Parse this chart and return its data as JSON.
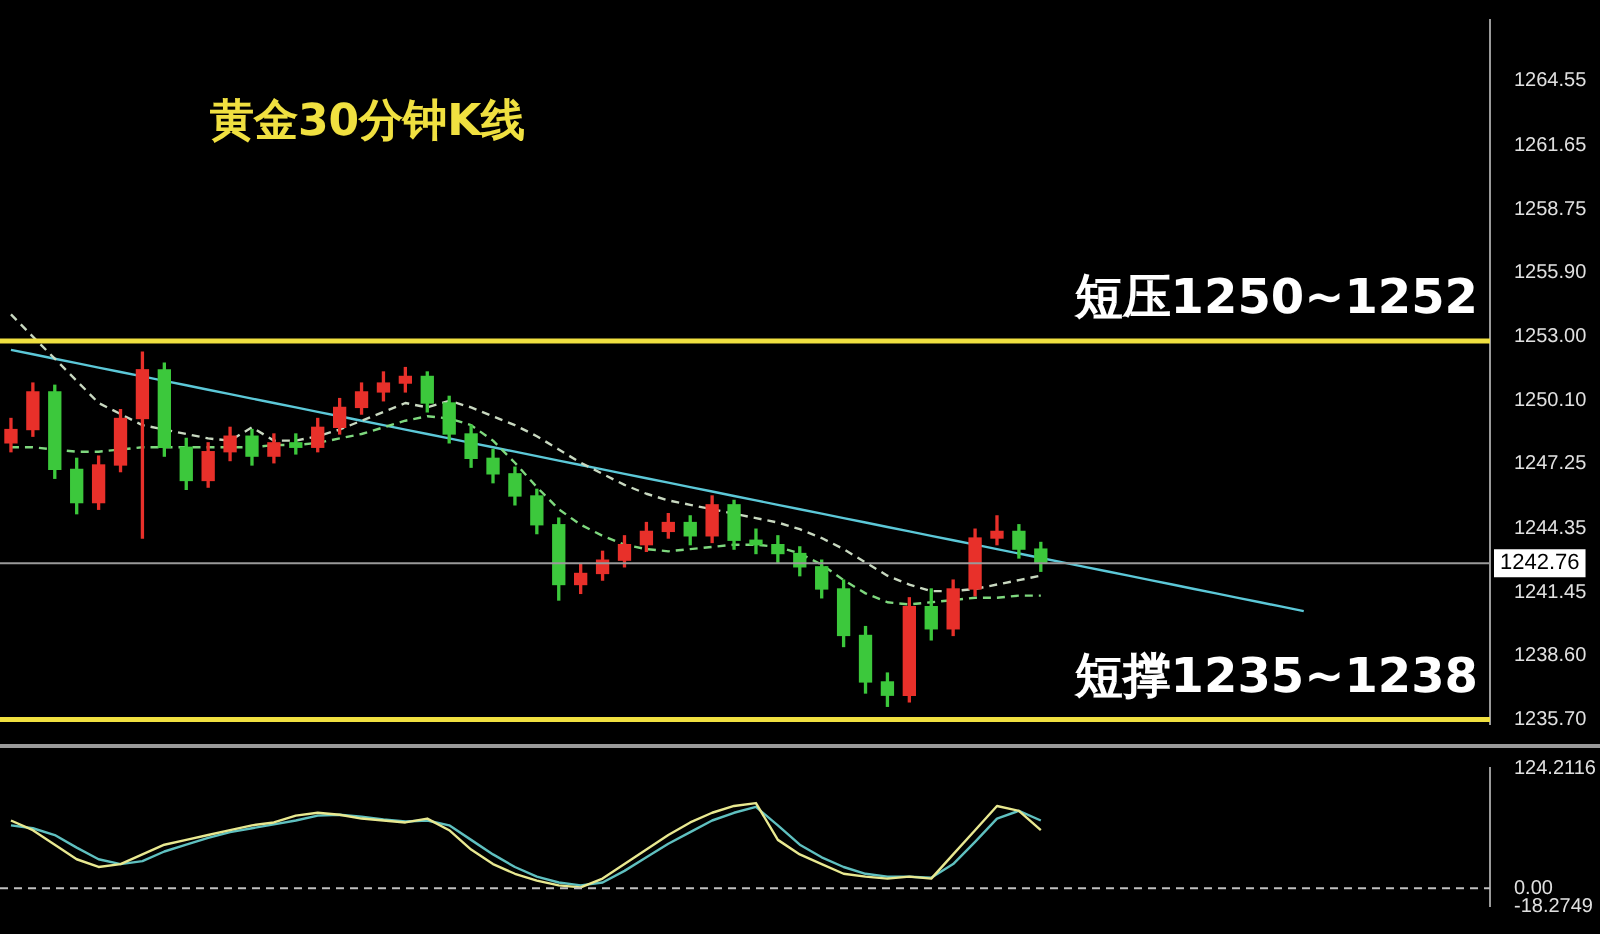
{
  "chart_data": [
    {
      "type": "candlestick",
      "title": "黄金30分钟K线",
      "legend": false,
      "marker": "none",
      "tick_labels": "y",
      "categories": [
        null,
        null,
        null,
        null,
        null,
        null,
        null,
        null,
        null,
        null,
        null,
        null,
        null,
        null,
        null,
        null,
        null,
        null,
        null,
        null,
        null,
        null,
        null,
        null,
        null,
        null,
        null,
        null,
        null,
        null,
        null,
        null,
        null,
        null,
        null,
        null,
        null,
        null,
        null,
        null,
        null,
        null,
        null,
        null,
        null,
        null,
        null,
        null,
        null,
        null,
        null,
        null,
        null,
        null,
        null,
        null,
        null,
        null,
        null,
        null,
        null,
        null,
        null,
        null,
        null,
        null,
        null,
        null
      ],
      "ohlc": [
        [
          1248.2,
          1249.3,
          1247.8,
          1248.8
        ],
        [
          1248.8,
          1250.9,
          1248.5,
          1250.5
        ],
        [
          1250.5,
          1250.8,
          1246.6,
          1247.0
        ],
        [
          1247.0,
          1247.5,
          1245.0,
          1245.5
        ],
        [
          1245.5,
          1247.6,
          1245.2,
          1247.2
        ],
        [
          1247.2,
          1249.7,
          1246.9,
          1249.3
        ],
        [
          1249.3,
          1252.3,
          1243.9,
          1251.5
        ],
        [
          1251.5,
          1251.8,
          1247.6,
          1248.0
        ],
        [
          1248.0,
          1248.4,
          1246.1,
          1246.5
        ],
        [
          1246.5,
          1248.2,
          1246.2,
          1247.8
        ],
        [
          1247.8,
          1248.9,
          1247.4,
          1248.5
        ],
        [
          1248.5,
          1248.8,
          1247.2,
          1247.6
        ],
        [
          1247.6,
          1248.6,
          1247.3,
          1248.2
        ],
        [
          1248.2,
          1248.6,
          1247.7,
          1248.0
        ],
        [
          1248.0,
          1249.3,
          1247.8,
          1248.9
        ],
        [
          1248.9,
          1250.2,
          1248.6,
          1249.8
        ],
        [
          1249.8,
          1250.9,
          1249.5,
          1250.5
        ],
        [
          1250.5,
          1251.4,
          1250.1,
          1250.9
        ],
        [
          1250.9,
          1251.6,
          1250.5,
          1251.2
        ],
        [
          1251.2,
          1251.4,
          1249.6,
          1250.0
        ],
        [
          1250.0,
          1250.3,
          1248.2,
          1248.6
        ],
        [
          1248.6,
          1249.0,
          1247.1,
          1247.5
        ],
        [
          1247.5,
          1247.9,
          1246.4,
          1246.8
        ],
        [
          1246.8,
          1247.1,
          1245.4,
          1245.8
        ],
        [
          1245.8,
          1246.1,
          1244.1,
          1244.5
        ],
        [
          1244.5,
          1244.8,
          1241.1,
          1241.8
        ],
        [
          1241.8,
          1242.7,
          1241.4,
          1242.3
        ],
        [
          1242.3,
          1243.3,
          1242.0,
          1242.9
        ],
        [
          1242.9,
          1244.0,
          1242.6,
          1243.6
        ],
        [
          1243.6,
          1244.6,
          1243.3,
          1244.2
        ],
        [
          1244.2,
          1245.0,
          1243.9,
          1244.6
        ],
        [
          1244.6,
          1244.9,
          1243.6,
          1244.0
        ],
        [
          1244.0,
          1245.8,
          1243.7,
          1245.4
        ],
        [
          1245.4,
          1245.6,
          1243.4,
          1243.8
        ],
        [
          1243.8,
          1244.3,
          1243.2,
          1243.6
        ],
        [
          1243.6,
          1244.0,
          1242.8,
          1243.2
        ],
        [
          1243.2,
          1243.5,
          1242.2,
          1242.6
        ],
        [
          1242.6,
          1242.9,
          1241.2,
          1241.6
        ],
        [
          1241.6,
          1242.0,
          1239.0,
          1239.5
        ],
        [
          1239.5,
          1239.9,
          1236.9,
          1237.4
        ],
        [
          1237.4,
          1237.8,
          1236.3,
          1236.8
        ],
        [
          1236.8,
          1241.2,
          1236.5,
          1240.8
        ],
        [
          1240.8,
          1241.6,
          1239.3,
          1239.8
        ],
        [
          1239.8,
          1242.0,
          1239.5,
          1241.6
        ],
        [
          1241.6,
          1244.3,
          1241.3,
          1243.9
        ],
        [
          1243.9,
          1244.9,
          1243.6,
          1244.2
        ],
        [
          1244.2,
          1244.5,
          1243.0,
          1243.4
        ],
        [
          1243.4,
          1243.7,
          1242.4,
          1242.76
        ],
        null,
        null,
        null,
        null,
        null,
        null,
        null,
        null,
        null,
        null,
        null,
        null,
        null,
        null,
        null,
        null,
        null,
        null,
        null,
        null
      ],
      "colors": [
        "#e8302a",
        "#e8302a",
        "#3cc83c",
        "#3cc83c",
        "#e8302a",
        "#e8302a",
        "#e8302a",
        "#3cc83c",
        "#3cc83c",
        "#e8302a",
        "#e8302a",
        "#3cc83c",
        "#e8302a",
        "#3cc83c",
        "#e8302a",
        "#e8302a",
        "#e8302a",
        "#e8302a",
        "#e8302a",
        "#3cc83c",
        "#3cc83c",
        "#3cc83c",
        "#3cc83c",
        "#3cc83c",
        "#3cc83c",
        "#3cc83c",
        "#e8302a",
        "#e8302a",
        "#e8302a",
        "#e8302a",
        "#e8302a",
        "#3cc83c",
        "#e8302a",
        "#3cc83c",
        "#3cc83c",
        "#3cc83c",
        "#3cc83c",
        "#3cc83c",
        "#3cc83c",
        "#3cc83c",
        "#3cc83c",
        "#e8302a",
        "#3cc83c",
        "#e8302a",
        "#e8302a",
        "#e8302a",
        "#3cc83c",
        "#3cc83c",
        null,
        null,
        null,
        null,
        null,
        null,
        null,
        null,
        null,
        null,
        null,
        null,
        null,
        null,
        null,
        null,
        null,
        null,
        null,
        null
      ],
      "series": [
        {
          "type": "line",
          "line_style": "dashed",
          "color": "#c8d8c0",
          "values": [
            1254,
            1253,
            1252,
            1251,
            1250,
            1249.5,
            1249,
            1248.8,
            1248.6,
            1248.4,
            1248.3,
            1248.9,
            1248.3,
            1248.3,
            1248.5,
            1248.8,
            1249.2,
            1249.6,
            1250,
            1249.8,
            1250.1,
            1249.8,
            1249.4,
            1249,
            1248.5,
            1247.9,
            1247.3,
            1246.8,
            1246.3,
            1245.9,
            1245.6,
            1245.4,
            1245.2,
            1245,
            1244.8,
            1244.6,
            1244.3,
            1243.9,
            1243.4,
            1242.8,
            1242.2,
            1241.8,
            1241.5,
            1241.5,
            1241.6,
            1241.8,
            1242,
            1242.2,
            null,
            null,
            null,
            null,
            null,
            null,
            null,
            null,
            null,
            null,
            null,
            null,
            null,
            null,
            null,
            null,
            null,
            null,
            null,
            null
          ]
        },
        {
          "type": "line",
          "line_style": "dashed",
          "color": "#7ed87e",
          "values": [
            1248,
            1248,
            1247.9,
            1247.8,
            1247.8,
            1247.9,
            1248,
            1248,
            1248,
            1248,
            1248,
            1248,
            1248.1,
            1248.1,
            1248.2,
            1248.4,
            1248.6,
            1248.9,
            1249.2,
            1249.4,
            1249.3,
            1249,
            1248.3,
            1247.3,
            1246.2,
            1245.2,
            1244.5,
            1244,
            1243.6,
            1243.4,
            1243.3,
            1243.4,
            1243.5,
            1243.6,
            1243.6,
            1243.5,
            1243.2,
            1242.7,
            1242,
            1241.4,
            1241,
            1240.9,
            1241,
            1241.1,
            1241.2,
            1241.2,
            1241.3,
            1241.3,
            null,
            null,
            null,
            null,
            null,
            null,
            null,
            null,
            null,
            null,
            null,
            null,
            null,
            null,
            null,
            null,
            null,
            null,
            null,
            null
          ]
        },
        {
          "type": "line",
          "line_style": "solid",
          "color": "#5cc8d8",
          "values": [
            1252.4,
            1252.2,
            1252.0,
            1251.8,
            1251.6,
            1251.4,
            1251.2,
            1251.0,
            1250.8,
            1250.6,
            1250.4,
            1250.2,
            1250.0,
            1249.8,
            1249.6,
            1249.4,
            1249.2,
            1249.0,
            1248.8,
            1248.6,
            1248.4,
            1248.2,
            1248.0,
            1247.8,
            1247.6,
            1247.4,
            1247.2,
            1247.0,
            1246.8,
            1246.6,
            1246.4,
            1246.2,
            1246.0,
            1245.8,
            1245.6,
            1245.4,
            1245.2,
            1245.0,
            1244.8,
            1244.6,
            1244.4,
            1244.2,
            1244.0,
            1243.8,
            1243.6,
            1243.4,
            1243.2,
            1243.0,
            1242.8,
            1242.6,
            1242.4,
            1242.2,
            1242.0,
            1241.8,
            1241.6,
            1241.4,
            1241.2,
            1241.0,
            1240.8,
            1240.6,
            null,
            null,
            null,
            null,
            null,
            null,
            null,
            null
          ]
        }
      ],
      "ylim": [
        1235.5,
        1267.3
      ],
      "yticks": [
        1264.55,
        1261.65,
        1258.75,
        {
          "value": 1255.9,
          "label": "1255.90"
        },
        {
          "value": 1253,
          "label": "1253.00"
        },
        {
          "value": 1250.1,
          "label": "1250.10"
        },
        1247.25,
        1244.35,
        1241.45,
        {
          "value": 1238.6,
          "label": "1238.60"
        },
        {
          "value": 1235.7,
          "label": "1235.70"
        }
      ],
      "ref_lines": [
        {
          "axis": "y",
          "value": 1252.8,
          "label": "短压1250~1252",
          "color": "#f0e040"
        },
        {
          "axis": "y",
          "value": 1235.7,
          "label": "短撑1235~1238",
          "color": "#f0e040"
        },
        {
          "axis": "y",
          "value": 1242.76,
          "label": "1242.76",
          "color": "#9a9a9a"
        }
      ]
    },
    {
      "type": "line",
      "legend": false,
      "marker": "none",
      "tick_labels": "y",
      "categories": [
        null,
        null,
        null,
        null,
        null,
        null,
        null,
        null,
        null,
        null,
        null,
        null,
        null,
        null,
        null,
        null,
        null,
        null,
        null,
        null,
        null,
        null,
        null,
        null,
        null,
        null,
        null,
        null,
        null,
        null,
        null,
        null,
        null,
        null,
        null,
        null,
        null,
        null,
        null,
        null,
        null,
        null,
        null,
        null,
        null,
        null,
        null,
        null,
        null,
        null,
        null,
        null,
        null,
        null,
        null,
        null,
        null,
        null,
        null,
        null,
        null,
        null,
        null,
        null,
        null,
        null,
        null,
        null
      ],
      "series": [
        {
          "color": "#e8e890",
          "values": [
            70,
            60,
            45,
            30,
            22,
            25,
            35,
            45,
            50,
            55,
            60,
            65,
            68,
            75,
            78,
            76,
            72,
            70,
            68,
            72,
            60,
            40,
            25,
            15,
            8,
            3,
            1,
            10,
            25,
            40,
            55,
            68,
            78,
            85,
            88,
            50,
            35,
            25,
            15,
            12,
            10,
            12,
            10,
            35,
            60,
            85,
            80,
            60,
            null,
            null,
            null,
            null,
            null,
            null,
            null,
            null,
            null,
            null,
            null,
            null,
            null,
            null,
            null,
            null,
            null,
            null,
            null,
            null
          ]
        },
        {
          "color": "#5fc0c0",
          "values": [
            65,
            62,
            55,
            42,
            30,
            25,
            28,
            38,
            45,
            52,
            58,
            62,
            66,
            70,
            75,
            76,
            74,
            71,
            69,
            70,
            65,
            50,
            35,
            22,
            12,
            6,
            3,
            6,
            18,
            32,
            46,
            58,
            70,
            78,
            84,
            65,
            45,
            32,
            22,
            15,
            12,
            12,
            11,
            25,
            48,
            72,
            80,
            70,
            null,
            null,
            null,
            null,
            null,
            null,
            null,
            null,
            null,
            null,
            null,
            null,
            null,
            null,
            null,
            null,
            null,
            null,
            null,
            null
          ]
        }
      ],
      "ylim": [
        -18.2749,
        124.2116
      ],
      "yticks": [
        124.2116,
        {
          "value": 0,
          "label": "0.00"
        },
        -18.2749
      ],
      "ref_lines": [
        {
          "axis": "y",
          "value": 0,
          "color": "#c0c0c0",
          "line_style": "dashed"
        }
      ]
    }
  ]
}
